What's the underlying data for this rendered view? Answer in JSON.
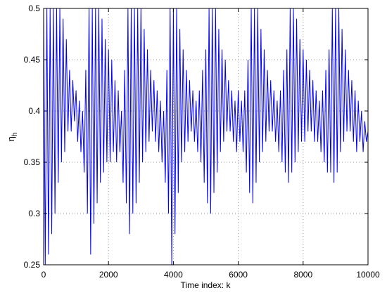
{
  "chart_data": {
    "type": "line",
    "xlabel": "Time index: k",
    "ylabel": [
      "η",
      "h"
    ],
    "xlim": [
      0,
      10000
    ],
    "xticks": [
      0,
      2000,
      4000,
      6000,
      8000,
      10000
    ],
    "ylim": [
      0.25,
      0.5
    ],
    "yticks": [
      0.25,
      0.3,
      0.35,
      0.4,
      0.45,
      0.5
    ],
    "grid": true,
    "x": [
      0,
      50,
      100,
      150,
      200,
      250,
      300,
      350,
      400,
      450,
      500,
      550,
      600,
      650,
      700,
      750,
      800,
      850,
      900,
      950,
      1000,
      1050,
      1100,
      1150,
      1200,
      1250,
      1300,
      1350,
      1400,
      1450,
      1500,
      1550,
      1600,
      1650,
      1700,
      1750,
      1800,
      1850,
      1900,
      1950,
      2000,
      2050,
      2100,
      2150,
      2200,
      2250,
      2300,
      2350,
      2400,
      2450,
      2500,
      2550,
      2600,
      2650,
      2700,
      2750,
      2800,
      2850,
      2900,
      2950,
      3000,
      3050,
      3100,
      3150,
      3200,
      3250,
      3300,
      3350,
      3400,
      3450,
      3500,
      3550,
      3600,
      3650,
      3700,
      3750,
      3800,
      3850,
      3900,
      3950,
      4000,
      4050,
      4100,
      4150,
      4200,
      4250,
      4300,
      4350,
      4400,
      4450,
      4500,
      4550,
      4600,
      4650,
      4700,
      4750,
      4800,
      4850,
      4900,
      4950,
      5000,
      5050,
      5100,
      5150,
      5200,
      5250,
      5300,
      5350,
      5400,
      5450,
      5500,
      5550,
      5600,
      5650,
      5700,
      5750,
      5800,
      5850,
      5900,
      5950,
      6000,
      6050,
      6100,
      6150,
      6200,
      6250,
      6300,
      6350,
      6400,
      6450,
      6500,
      6550,
      6600,
      6650,
      6700,
      6750,
      6800,
      6850,
      6900,
      6950,
      7000,
      7050,
      7100,
      7150,
      7200,
      7250,
      7300,
      7350,
      7400,
      7450,
      7500,
      7550,
      7600,
      7650,
      7700,
      7750,
      7800,
      7850,
      7900,
      7950,
      8000,
      8050,
      8100,
      8150,
      8200,
      8250,
      8300,
      8350,
      8400,
      8450,
      8500,
      8550,
      8600,
      8650,
      8700,
      8750,
      8800,
      8850,
      8900,
      8950,
      9000,
      9050,
      9100,
      9150,
      9200,
      9250,
      9300,
      9350,
      9400,
      9450,
      9500,
      9550,
      9600,
      9650,
      9700,
      9750,
      9800,
      9850,
      9900,
      9950,
      10000
    ],
    "series": [
      {
        "color": "#0000ff",
        "values": [
          0.5,
          0.25,
          0.5,
          0.26,
          0.5,
          0.28,
          0.5,
          0.3,
          0.5,
          0.33,
          0.5,
          0.35,
          0.49,
          0.36,
          0.47,
          0.38,
          0.44,
          0.38,
          0.43,
          0.39,
          0.42,
          0.37,
          0.41,
          0.36,
          0.4,
          0.34,
          0.44,
          0.3,
          0.5,
          0.26,
          0.5,
          0.29,
          0.5,
          0.31,
          0.5,
          0.33,
          0.49,
          0.34,
          0.47,
          0.35,
          0.46,
          0.35,
          0.45,
          0.36,
          0.43,
          0.35,
          0.42,
          0.36,
          0.4,
          0.33,
          0.44,
          0.31,
          0.5,
          0.28,
          0.5,
          0.3,
          0.5,
          0.31,
          0.5,
          0.33,
          0.5,
          0.35,
          0.48,
          0.36,
          0.46,
          0.37,
          0.44,
          0.38,
          0.43,
          0.37,
          0.42,
          0.36,
          0.41,
          0.35,
          0.4,
          0.33,
          0.44,
          0.3,
          0.5,
          0.25,
          0.5,
          0.28,
          0.5,
          0.32,
          0.48,
          0.35,
          0.46,
          0.36,
          0.44,
          0.37,
          0.43,
          0.38,
          0.42,
          0.37,
          0.41,
          0.36,
          0.42,
          0.35,
          0.44,
          0.33,
          0.46,
          0.31,
          0.5,
          0.3,
          0.5,
          0.32,
          0.5,
          0.34,
          0.48,
          0.36,
          0.46,
          0.37,
          0.45,
          0.38,
          0.43,
          0.38,
          0.42,
          0.37,
          0.41,
          0.36,
          0.42,
          0.37,
          0.41,
          0.36,
          0.42,
          0.34,
          0.45,
          0.32,
          0.5,
          0.31,
          0.5,
          0.33,
          0.5,
          0.35,
          0.48,
          0.36,
          0.46,
          0.37,
          0.44,
          0.38,
          0.43,
          0.38,
          0.42,
          0.37,
          0.41,
          0.36,
          0.42,
          0.35,
          0.44,
          0.34,
          0.46,
          0.33,
          0.5,
          0.34,
          0.5,
          0.35,
          0.49,
          0.36,
          0.47,
          0.37,
          0.46,
          0.37,
          0.45,
          0.38,
          0.44,
          0.38,
          0.43,
          0.37,
          0.42,
          0.37,
          0.41,
          0.36,
          0.42,
          0.35,
          0.44,
          0.34,
          0.46,
          0.34,
          0.5,
          0.33,
          0.5,
          0.34,
          0.5,
          0.36,
          0.48,
          0.37,
          0.46,
          0.38,
          0.44,
          0.38,
          0.43,
          0.37,
          0.42,
          0.36,
          0.41,
          0.37,
          0.4,
          0.36,
          0.39,
          0.37,
          0.38
        ]
      }
    ]
  }
}
